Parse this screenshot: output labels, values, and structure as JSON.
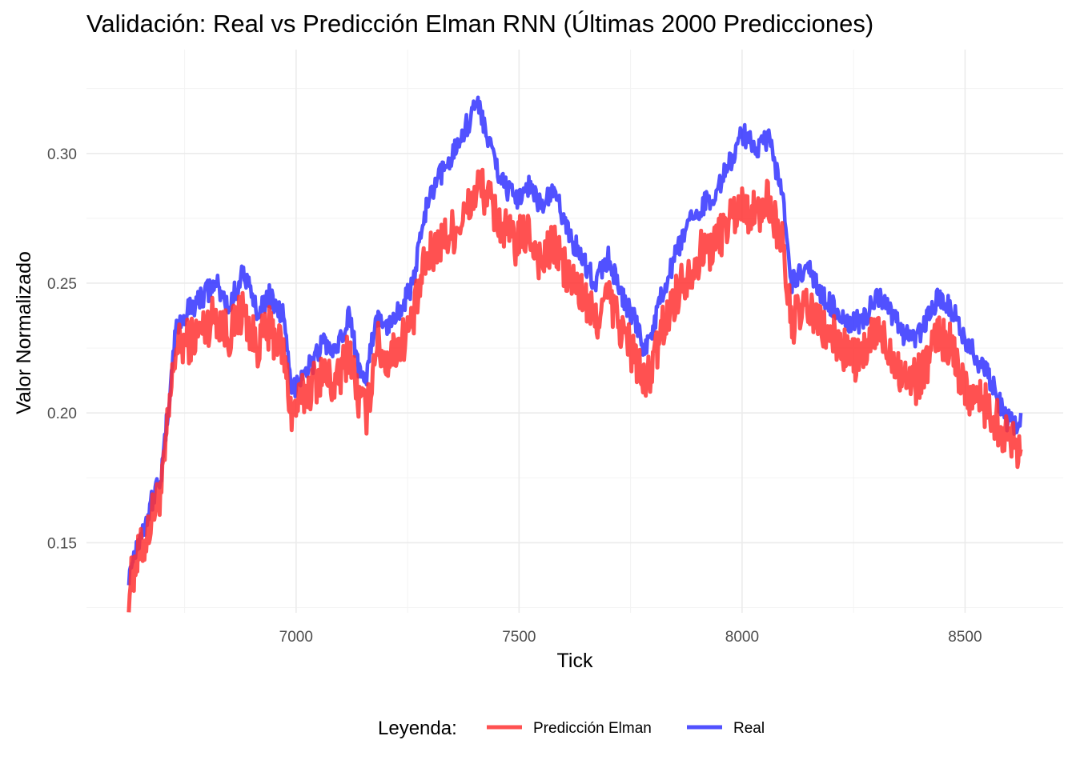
{
  "chart_data": {
    "type": "line",
    "title": "Validación: Real vs Predicción Elman RNN (Últimas 2000 Predicciones)",
    "xlabel": "Tick",
    "ylabel": "Valor Normalizado",
    "xlim": [
      6530,
      8720
    ],
    "ylim": [
      0.123,
      0.34
    ],
    "x_ticks": [
      7000,
      7500,
      8000,
      8500
    ],
    "x_tick_labels": [
      "7000",
      "7500",
      "8000",
      "8500"
    ],
    "y_ticks": [
      0.15,
      0.2,
      0.25,
      0.3
    ],
    "y_tick_labels": [
      "0.15",
      "0.20",
      "0.25",
      "0.30"
    ],
    "grid": true,
    "legend_position": "bottom",
    "legend_title": "Leyenda:",
    "series": [
      {
        "name": "Predicción Elman",
        "color": "#ff3333",
        "x": [
          6625,
          6640,
          6660,
          6680,
          6700,
          6715,
          6730,
          6760,
          6790,
          6820,
          6850,
          6880,
          6910,
          6940,
          6970,
          6990,
          7010,
          7040,
          7060,
          7090,
          7120,
          7140,
          7160,
          7180,
          7200,
          7230,
          7260,
          7290,
          7320,
          7350,
          7380,
          7410,
          7430,
          7460,
          7490,
          7520,
          7550,
          7580,
          7610,
          7640,
          7670,
          7700,
          7730,
          7760,
          7780,
          7800,
          7820,
          7850,
          7880,
          7910,
          7940,
          7970,
          8000,
          8030,
          8060,
          8090,
          8110,
          8130,
          8150,
          8180,
          8210,
          8240,
          8270,
          8300,
          8330,
          8360,
          8390,
          8420,
          8440,
          8470,
          8500,
          8530,
          8560,
          8590,
          8610,
          8625
        ],
        "y": [
          0.132,
          0.142,
          0.15,
          0.162,
          0.172,
          0.2,
          0.225,
          0.228,
          0.232,
          0.238,
          0.23,
          0.24,
          0.226,
          0.232,
          0.225,
          0.2,
          0.205,
          0.212,
          0.215,
          0.21,
          0.225,
          0.205,
          0.2,
          0.228,
          0.22,
          0.226,
          0.234,
          0.258,
          0.265,
          0.27,
          0.276,
          0.288,
          0.283,
          0.272,
          0.265,
          0.27,
          0.258,
          0.265,
          0.252,
          0.246,
          0.235,
          0.245,
          0.232,
          0.222,
          0.21,
          0.218,
          0.232,
          0.245,
          0.255,
          0.262,
          0.265,
          0.275,
          0.28,
          0.276,
          0.282,
          0.265,
          0.235,
          0.238,
          0.24,
          0.232,
          0.228,
          0.222,
          0.22,
          0.232,
          0.225,
          0.215,
          0.212,
          0.222,
          0.23,
          0.225,
          0.21,
          0.205,
          0.2,
          0.192,
          0.19,
          0.186
        ]
      },
      {
        "name": "Real",
        "color": "#3333ff",
        "x": [
          6625,
          6640,
          6660,
          6680,
          6700,
          6715,
          6730,
          6760,
          6790,
          6820,
          6850,
          6880,
          6910,
          6940,
          6970,
          6990,
          7010,
          7040,
          7060,
          7090,
          7120,
          7140,
          7160,
          7180,
          7200,
          7230,
          7260,
          7290,
          7320,
          7350,
          7380,
          7410,
          7430,
          7460,
          7490,
          7520,
          7550,
          7580,
          7610,
          7640,
          7670,
          7700,
          7730,
          7760,
          7780,
          7800,
          7820,
          7850,
          7880,
          7910,
          7940,
          7970,
          8000,
          8030,
          8060,
          8090,
          8110,
          8130,
          8150,
          8180,
          8210,
          8240,
          8270,
          8300,
          8330,
          8360,
          8390,
          8420,
          8440,
          8470,
          8500,
          8530,
          8560,
          8590,
          8610,
          8625
        ],
        "y": [
          0.138,
          0.148,
          0.157,
          0.168,
          0.178,
          0.205,
          0.232,
          0.24,
          0.245,
          0.25,
          0.24,
          0.255,
          0.24,
          0.245,
          0.238,
          0.208,
          0.215,
          0.22,
          0.228,
          0.222,
          0.238,
          0.218,
          0.215,
          0.238,
          0.232,
          0.24,
          0.248,
          0.278,
          0.29,
          0.3,
          0.31,
          0.32,
          0.305,
          0.29,
          0.282,
          0.288,
          0.28,
          0.285,
          0.27,
          0.26,
          0.25,
          0.26,
          0.245,
          0.235,
          0.225,
          0.232,
          0.245,
          0.26,
          0.272,
          0.28,
          0.285,
          0.295,
          0.308,
          0.302,
          0.305,
          0.285,
          0.25,
          0.253,
          0.255,
          0.245,
          0.24,
          0.235,
          0.235,
          0.245,
          0.24,
          0.23,
          0.228,
          0.238,
          0.245,
          0.24,
          0.228,
          0.22,
          0.212,
          0.198,
          0.195,
          0.2
        ]
      }
    ]
  }
}
